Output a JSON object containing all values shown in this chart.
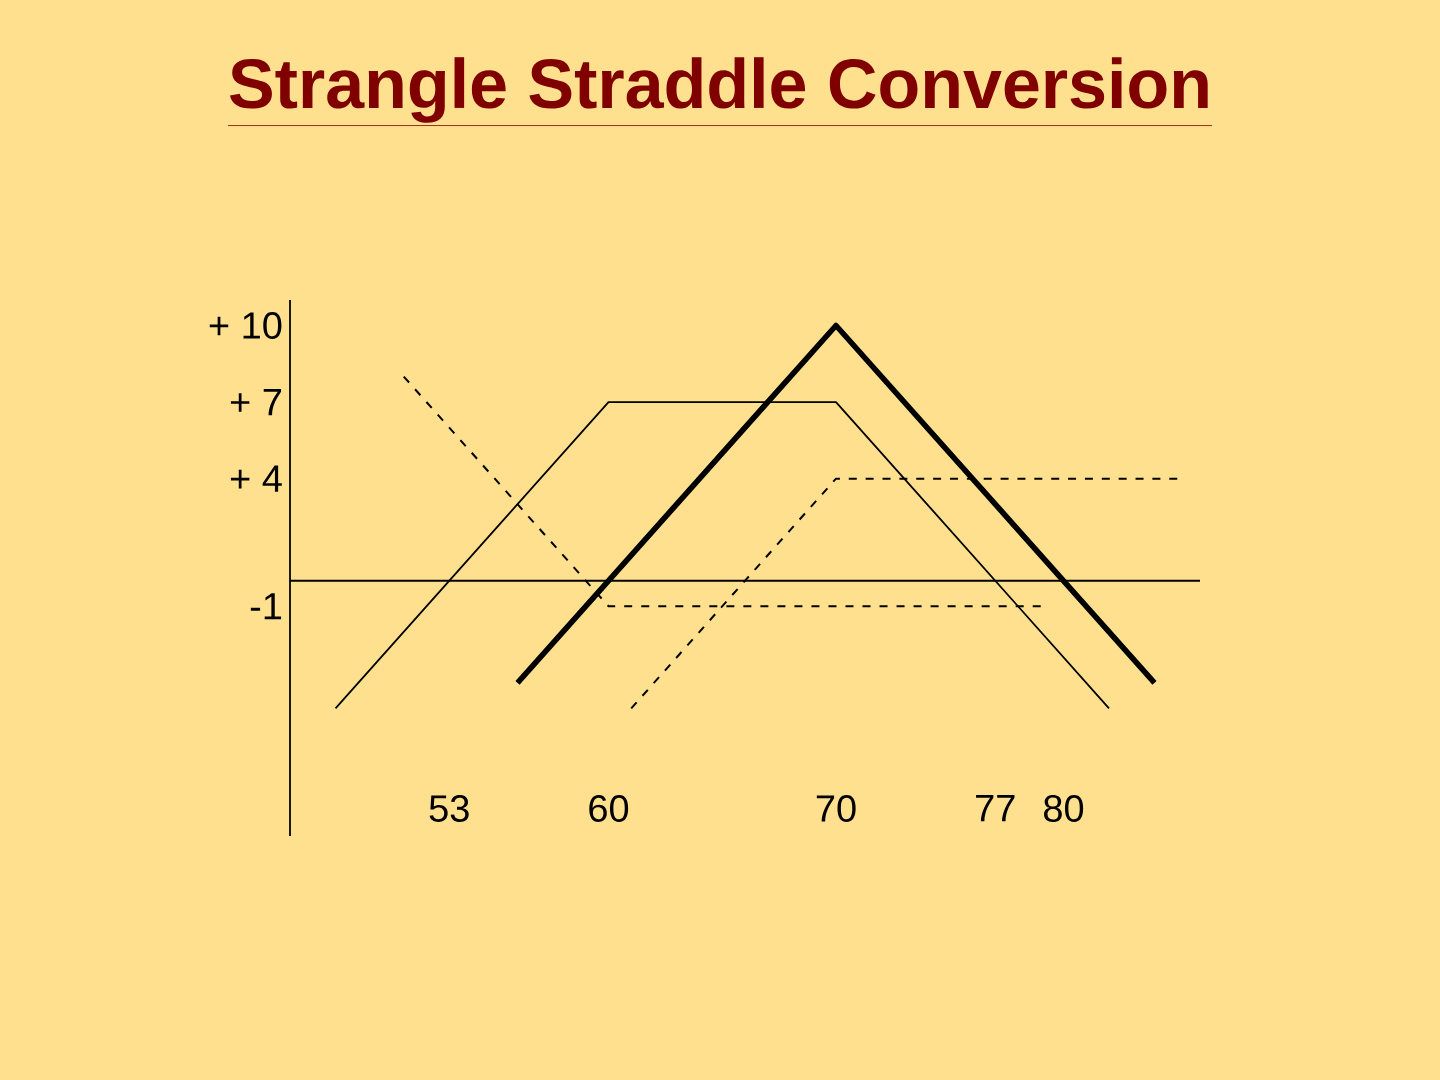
{
  "chart_data": {
    "type": "line",
    "title": "Strangle Straddle Conversion",
    "series": [
      {
        "color": "#000000",
        "line_style": "solid",
        "x": [
          48,
          60,
          70,
          82
        ],
        "values": [
          -5,
          7,
          7,
          -5
        ]
      },
      {
        "color": "#000000",
        "line_style": "solid",
        "x": [
          56,
          70,
          84
        ],
        "values": [
          -4,
          10,
          -4
        ]
      },
      {
        "color": "#000000",
        "line_style": "dashed",
        "x": [
          51,
          60,
          79
        ],
        "values": [
          8,
          -1,
          -1
        ]
      },
      {
        "color": "#000000",
        "line_style": "dashed",
        "x": [
          61,
          70,
          85
        ],
        "values": [
          -5,
          4,
          4
        ]
      }
    ],
    "xlim": [
      46,
      86
    ],
    "ylim": [
      -10,
      11
    ],
    "xticks": [
      53,
      60,
      70,
      77,
      80
    ],
    "yticks": [
      {
        "value": 10,
        "label": "+ 10"
      },
      {
        "value": 7,
        "label": "+ 7"
      },
      {
        "value": 4,
        "label": "+ 4"
      },
      -1
    ],
    "ref_lines": [
      {
        "axis": "y",
        "value": 0
      }
    ]
  }
}
